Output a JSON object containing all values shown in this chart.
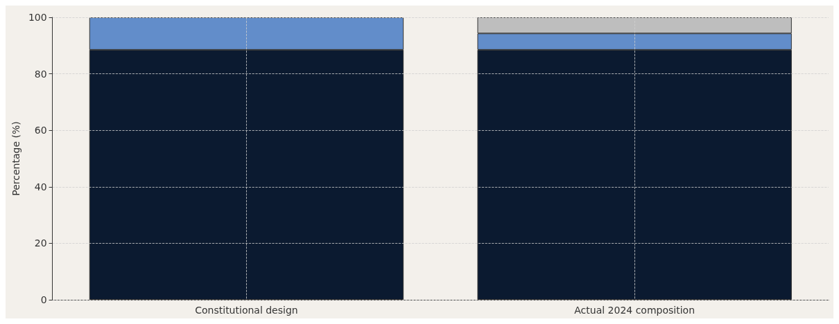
{
  "chart_data": {
    "type": "bar",
    "stacked": true,
    "ylabel": "Percentage (%)",
    "categories": [
      "Constitutional design",
      "Actual 2024 composition"
    ],
    "series": [
      {
        "color": "#0b1a30",
        "values": [
          88.5,
          88.5
        ]
      },
      {
        "color": "#628dca",
        "values": [
          11.5,
          5.8
        ]
      },
      {
        "color": "#bebebe",
        "values": [
          null,
          5.7
        ]
      }
    ],
    "ylim": [
      0,
      100
    ],
    "yticks": [
      0,
      20,
      40,
      60,
      80,
      100
    ],
    "grid": true
  }
}
